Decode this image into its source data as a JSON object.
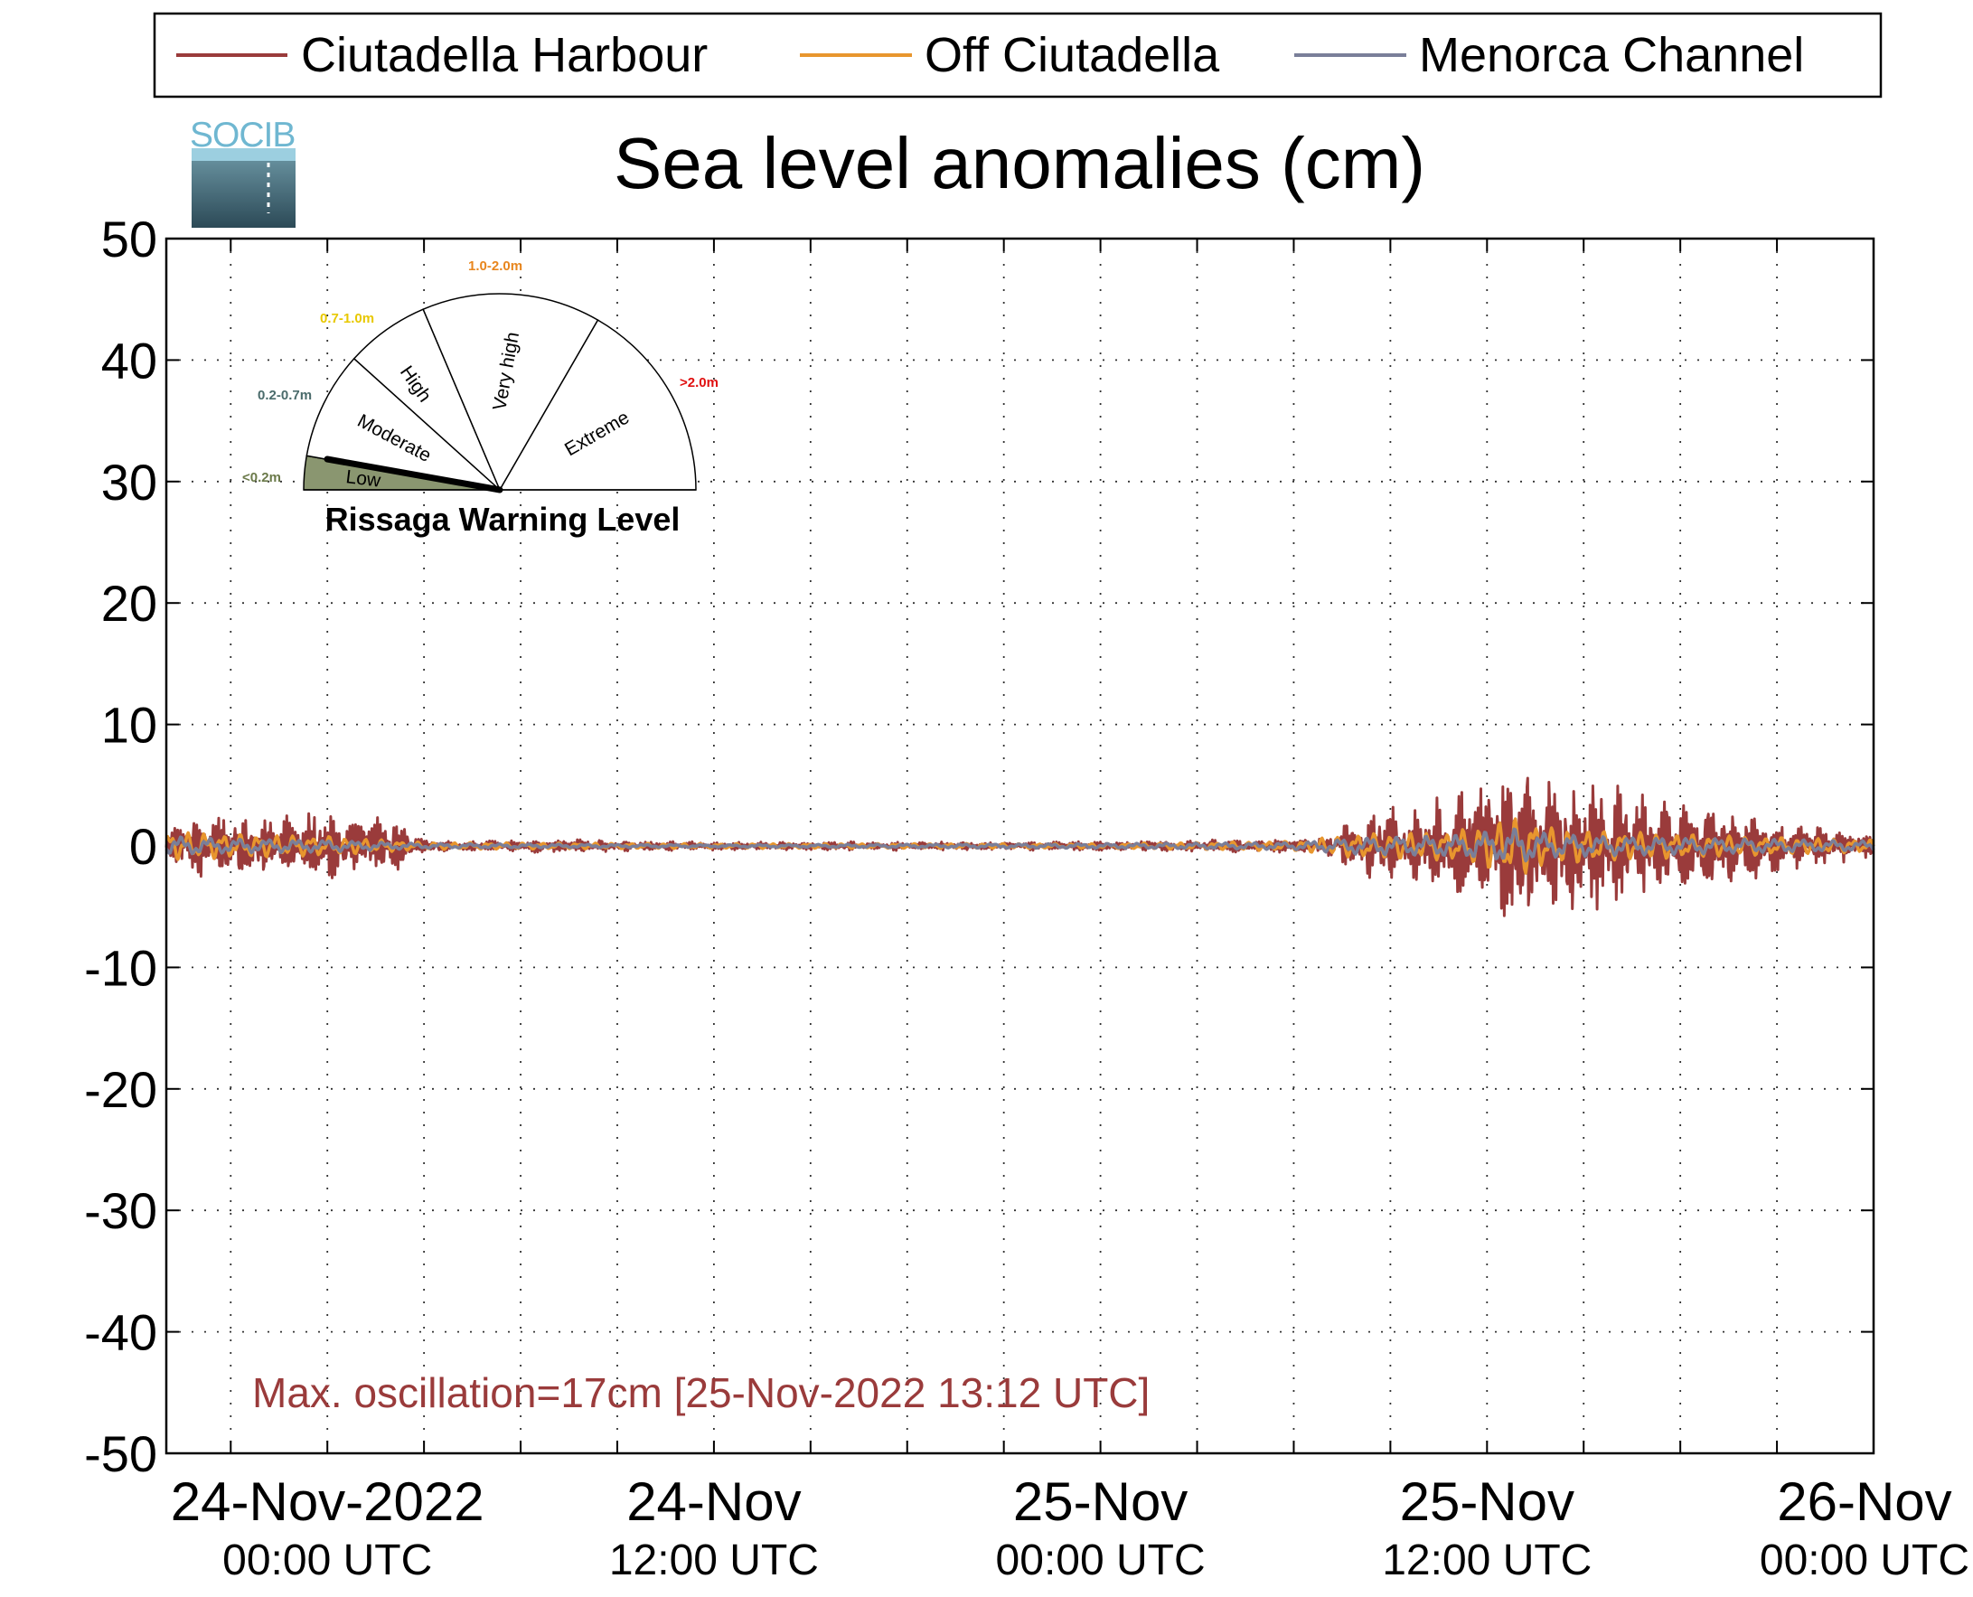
{
  "chart_data": {
    "type": "line",
    "title": "Sea level anomalies (cm)",
    "xlabel": "",
    "ylabel": "",
    "ylim": [
      -50,
      50
    ],
    "yticks": [
      50,
      40,
      30,
      20,
      10,
      0,
      -10,
      -20,
      -30,
      -40,
      -50
    ],
    "xlim_hours": [
      -5,
      48
    ],
    "grid": true,
    "legend_position": "top",
    "x_tick_labels": [
      {
        "hours": 0,
        "line1": "24-Nov-2022",
        "line2": "00:00 UTC"
      },
      {
        "hours": 12,
        "line1": "24-Nov",
        "line2": "12:00 UTC"
      },
      {
        "hours": 24,
        "line1": "25-Nov",
        "line2": "00:00 UTC"
      },
      {
        "hours": 36,
        "line1": "25-Nov",
        "line2": "12:00 UTC"
      },
      {
        "hours": 48,
        "line1": "26-Nov",
        "line2": "00:00 UTC"
      }
    ],
    "series": [
      {
        "name": "Ciutadella Harbour",
        "color": "#9a3b3b",
        "envelope": [
          [
            -5,
            1.0
          ],
          [
            -4,
            3.5
          ],
          [
            -3,
            3.0
          ],
          [
            -2,
            2.5
          ],
          [
            -1,
            3.0
          ],
          [
            0,
            3.0
          ],
          [
            1,
            2.5
          ],
          [
            2,
            2.8
          ],
          [
            3,
            0.6
          ],
          [
            4,
            0.5
          ],
          [
            5,
            0.5
          ],
          [
            7,
            0.6
          ],
          [
            8,
            0.7
          ],
          [
            9,
            0.5
          ],
          [
            12,
            0.4
          ],
          [
            18,
            0.4
          ],
          [
            24,
            0.4
          ],
          [
            28,
            0.6
          ],
          [
            30,
            0.7
          ],
          [
            31,
            1.0
          ],
          [
            32,
            3.0
          ],
          [
            33,
            3.5
          ],
          [
            34,
            3.5
          ],
          [
            35,
            5.0
          ],
          [
            36,
            6.0
          ],
          [
            37,
            8.5
          ],
          [
            38,
            6.5
          ],
          [
            39,
            6.0
          ],
          [
            40,
            5.5
          ],
          [
            41,
            4.5
          ],
          [
            42,
            4.0
          ],
          [
            43,
            4.0
          ],
          [
            44,
            3.5
          ],
          [
            45,
            2.5
          ],
          [
            46,
            2.0
          ],
          [
            47,
            1.5
          ],
          [
            48,
            1.2
          ]
        ]
      },
      {
        "name": "Off Ciutadella",
        "color": "#e8962e",
        "envelope": [
          [
            -5,
            1.2
          ],
          [
            -3,
            1.0
          ],
          [
            0,
            0.8
          ],
          [
            3,
            0.3
          ],
          [
            12,
            0.2
          ],
          [
            24,
            0.2
          ],
          [
            30,
            0.4
          ],
          [
            32,
            1.0
          ],
          [
            35,
            1.2
          ],
          [
            37,
            2.5
          ],
          [
            38,
            1.5
          ],
          [
            40,
            1.2
          ],
          [
            44,
            0.8
          ],
          [
            48,
            0.5
          ]
        ]
      },
      {
        "name": "Menorca Channel",
        "color": "#7a7f99",
        "envelope": [
          [
            -5,
            0.8
          ],
          [
            -3,
            0.6
          ],
          [
            0,
            0.5
          ],
          [
            3,
            0.2
          ],
          [
            12,
            0.1
          ],
          [
            24,
            0.2
          ],
          [
            30,
            0.3
          ],
          [
            32,
            0.7
          ],
          [
            35,
            0.9
          ],
          [
            37,
            1.5
          ],
          [
            38,
            1.0
          ],
          [
            40,
            0.8
          ],
          [
            44,
            0.6
          ],
          [
            48,
            0.4
          ]
        ]
      }
    ],
    "annotation": {
      "text": "Max. oscillation=17cm [25-Nov-2022 13:12 UTC]",
      "color": "#9a3b3b"
    }
  },
  "logo": {
    "text": "SOCIB"
  },
  "gauge": {
    "title": "Rissaga Warning Level",
    "current_level": "Low",
    "segments": [
      {
        "name": "Low",
        "range": "<0.2m",
        "range_color": "#6b7a4a",
        "fill": "#8a9670"
      },
      {
        "name": "Moderate",
        "range": "0.2-0.7m",
        "range_color": "#4a6b6b",
        "fill": "#ffffff"
      },
      {
        "name": "High",
        "range": "0.7-1.0m",
        "range_color": "#e8c800",
        "fill": "#ffffff"
      },
      {
        "name": "Very high",
        "range": "1.0-2.0m",
        "range_color": "#e8861e",
        "fill": "#ffffff"
      },
      {
        "name": "Extreme",
        "range": ">2.0m",
        "range_color": "#e01010",
        "fill": "#ffffff"
      }
    ]
  }
}
